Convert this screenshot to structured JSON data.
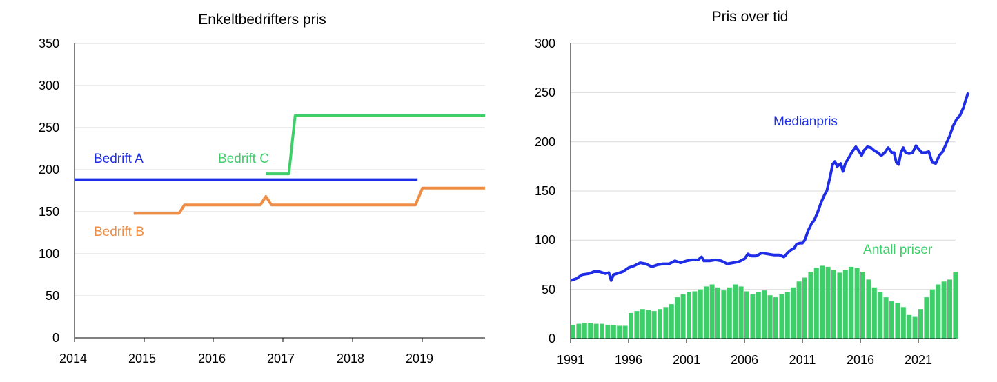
{
  "chart_data": [
    {
      "type": "line",
      "title": "Enkeltbedrifters pris",
      "xlabel": "",
      "ylabel": "",
      "xlim": [
        2014,
        2019.9
      ],
      "ylim": [
        0,
        350
      ],
      "x_ticks": [
        "2014",
        "2015",
        "2016",
        "2017",
        "2018",
        "2019"
      ],
      "y_ticks": [
        "0",
        "50",
        "100",
        "150",
        "200",
        "250",
        "300",
        "350"
      ],
      "grid": "horizontal",
      "series": [
        {
          "name": "Bedrift A",
          "color": "#1f2ee6",
          "points": [
            [
              2014.0,
              188
            ],
            [
              2018.93,
              188
            ]
          ]
        },
        {
          "name": "Bedrift B",
          "color": "#ee8d45",
          "points": [
            [
              2014.85,
              148
            ],
            [
              2015.5,
              148
            ],
            [
              2015.58,
              158
            ],
            [
              2016.67,
              158
            ],
            [
              2016.75,
              168
            ],
            [
              2016.83,
              158
            ],
            [
              2018.9,
              158
            ],
            [
              2019.0,
              178
            ],
            [
              2019.9,
              178
            ]
          ]
        },
        {
          "name": "Bedrift C",
          "color": "#3fcf6a",
          "points": [
            [
              2016.75,
              195
            ],
            [
              2017.08,
              195
            ],
            [
              2017.17,
              264
            ],
            [
              2019.9,
              264
            ]
          ]
        }
      ]
    },
    {
      "type": "line",
      "title": "Pris over tid",
      "xlabel": "",
      "ylabel": "",
      "xlim": [
        1991,
        2024.3
      ],
      "ylim": [
        0,
        300
      ],
      "x_ticks": [
        "1991",
        "1996",
        "2001",
        "2006",
        "2011",
        "2016",
        "2021"
      ],
      "y_ticks": [
        "0",
        "50",
        "100",
        "150",
        "200",
        "250",
        "300"
      ],
      "grid": "horizontal",
      "series": [
        {
          "name": "Medianpris",
          "type": "line",
          "color": "#1f2ee6",
          "points": [
            [
              1991.0,
              59
            ],
            [
              1991.5,
              61
            ],
            [
              1992.0,
              65
            ],
            [
              1992.6,
              66
            ],
            [
              1993.0,
              68
            ],
            [
              1993.5,
              68
            ],
            [
              1994.0,
              66
            ],
            [
              1994.3,
              67
            ],
            [
              1994.5,
              59
            ],
            [
              1994.7,
              65
            ],
            [
              1995.0,
              66
            ],
            [
              1995.5,
              68
            ],
            [
              1996.0,
              72
            ],
            [
              1996.5,
              74
            ],
            [
              1997.0,
              77
            ],
            [
              1997.5,
              76
            ],
            [
              1998.0,
              73
            ],
            [
              1998.5,
              75
            ],
            [
              1999.0,
              76
            ],
            [
              1999.5,
              76
            ],
            [
              2000.0,
              79
            ],
            [
              2000.5,
              77
            ],
            [
              2001.0,
              79
            ],
            [
              2001.5,
              80
            ],
            [
              2002.0,
              80
            ],
            [
              2002.3,
              83
            ],
            [
              2002.5,
              79
            ],
            [
              2003.0,
              79
            ],
            [
              2003.5,
              80
            ],
            [
              2004.0,
              79
            ],
            [
              2004.5,
              76
            ],
            [
              2005.0,
              77
            ],
            [
              2005.5,
              78
            ],
            [
              2006.0,
              81
            ],
            [
              2006.3,
              86
            ],
            [
              2006.6,
              84
            ],
            [
              2007.0,
              84
            ],
            [
              2007.5,
              87
            ],
            [
              2008.0,
              86
            ],
            [
              2008.5,
              85
            ],
            [
              2009.0,
              85
            ],
            [
              2009.4,
              83
            ],
            [
              2009.8,
              88
            ],
            [
              2010.0,
              90
            ],
            [
              2010.3,
              92
            ],
            [
              2010.5,
              96
            ],
            [
              2010.8,
              97
            ],
            [
              2011.0,
              97
            ],
            [
              2011.2,
              100
            ],
            [
              2011.5,
              110
            ],
            [
              2011.8,
              117
            ],
            [
              2012.0,
              120
            ],
            [
              2012.3,
              128
            ],
            [
              2012.6,
              138
            ],
            [
              2012.9,
              146
            ],
            [
              2013.1,
              150
            ],
            [
              2013.4,
              165
            ],
            [
              2013.6,
              177
            ],
            [
              2013.8,
              180
            ],
            [
              2014.0,
              175
            ],
            [
              2014.3,
              178
            ],
            [
              2014.5,
              170
            ],
            [
              2014.7,
              178
            ],
            [
              2015.0,
              184
            ],
            [
              2015.3,
              190
            ],
            [
              2015.6,
              195
            ],
            [
              2015.9,
              190
            ],
            [
              2016.1,
              186
            ],
            [
              2016.3,
              191
            ],
            [
              2016.6,
              195
            ],
            [
              2016.9,
              194
            ],
            [
              2017.2,
              191
            ],
            [
              2017.5,
              189
            ],
            [
              2017.8,
              186
            ],
            [
              2018.1,
              189
            ],
            [
              2018.4,
              194
            ],
            [
              2018.7,
              189
            ],
            [
              2018.9,
              189
            ],
            [
              2019.1,
              179
            ],
            [
              2019.3,
              177
            ],
            [
              2019.5,
              189
            ],
            [
              2019.7,
              194
            ],
            [
              2019.9,
              189
            ],
            [
              2020.2,
              188
            ],
            [
              2020.5,
              189
            ],
            [
              2020.8,
              196
            ],
            [
              2021.0,
              193
            ],
            [
              2021.3,
              189
            ],
            [
              2021.6,
              189
            ],
            [
              2021.9,
              190
            ],
            [
              2022.2,
              179
            ],
            [
              2022.5,
              178
            ],
            [
              2022.8,
              186
            ],
            [
              2023.1,
              190
            ],
            [
              2023.4,
              198
            ],
            [
              2023.7,
              206
            ],
            [
              2024.0,
              216
            ],
            [
              2024.3,
              223
            ],
            [
              2024.6,
              227
            ],
            [
              2024.9,
              235
            ],
            [
              2025.1,
              243
            ],
            [
              2025.3,
              250
            ]
          ]
        },
        {
          "name": "Antall priser",
          "type": "bar",
          "color": "#3fcf6a",
          "points": [
            [
              1991.0,
              14
            ],
            [
              1991.5,
              15
            ],
            [
              1992.0,
              16
            ],
            [
              1992.5,
              16
            ],
            [
              1993.0,
              15
            ],
            [
              1993.5,
              15
            ],
            [
              1994.0,
              14
            ],
            [
              1994.5,
              14
            ],
            [
              1995.0,
              13
            ],
            [
              1995.5,
              13
            ],
            [
              1996.0,
              26
            ],
            [
              1996.5,
              28
            ],
            [
              1997.0,
              30
            ],
            [
              1997.5,
              29
            ],
            [
              1998.0,
              28
            ],
            [
              1998.5,
              30
            ],
            [
              1999.0,
              32
            ],
            [
              1999.5,
              35
            ],
            [
              2000.0,
              42
            ],
            [
              2000.5,
              45
            ],
            [
              2001.0,
              47
            ],
            [
              2001.5,
              48
            ],
            [
              2002.0,
              50
            ],
            [
              2002.5,
              53
            ],
            [
              2003.0,
              55
            ],
            [
              2003.5,
              52
            ],
            [
              2004.0,
              49
            ],
            [
              2004.5,
              52
            ],
            [
              2005.0,
              55
            ],
            [
              2005.5,
              53
            ],
            [
              2006.0,
              48
            ],
            [
              2006.5,
              45
            ],
            [
              2007.0,
              47
            ],
            [
              2007.5,
              49
            ],
            [
              2008.0,
              44
            ],
            [
              2008.5,
              42
            ],
            [
              2009.0,
              45
            ],
            [
              2009.5,
              47
            ],
            [
              2010.0,
              52
            ],
            [
              2010.5,
              58
            ],
            [
              2011.0,
              62
            ],
            [
              2011.5,
              68
            ],
            [
              2012.0,
              72
            ],
            [
              2012.5,
              74
            ],
            [
              2013.0,
              73
            ],
            [
              2013.5,
              70
            ],
            [
              2014.0,
              67
            ],
            [
              2014.5,
              70
            ],
            [
              2015.0,
              73
            ],
            [
              2015.5,
              72
            ],
            [
              2016.0,
              68
            ],
            [
              2016.5,
              60
            ],
            [
              2017.0,
              52
            ],
            [
              2017.5,
              47
            ],
            [
              2018.0,
              42
            ],
            [
              2018.5,
              38
            ],
            [
              2019.0,
              36
            ],
            [
              2019.5,
              32
            ],
            [
              2020.0,
              24
            ],
            [
              2020.5,
              22
            ],
            [
              2021.0,
              30
            ],
            [
              2021.5,
              42
            ],
            [
              2022.0,
              50
            ],
            [
              2022.5,
              55
            ],
            [
              2023.0,
              58
            ],
            [
              2023.5,
              60
            ],
            [
              2024.0,
              68
            ]
          ]
        }
      ]
    }
  ]
}
